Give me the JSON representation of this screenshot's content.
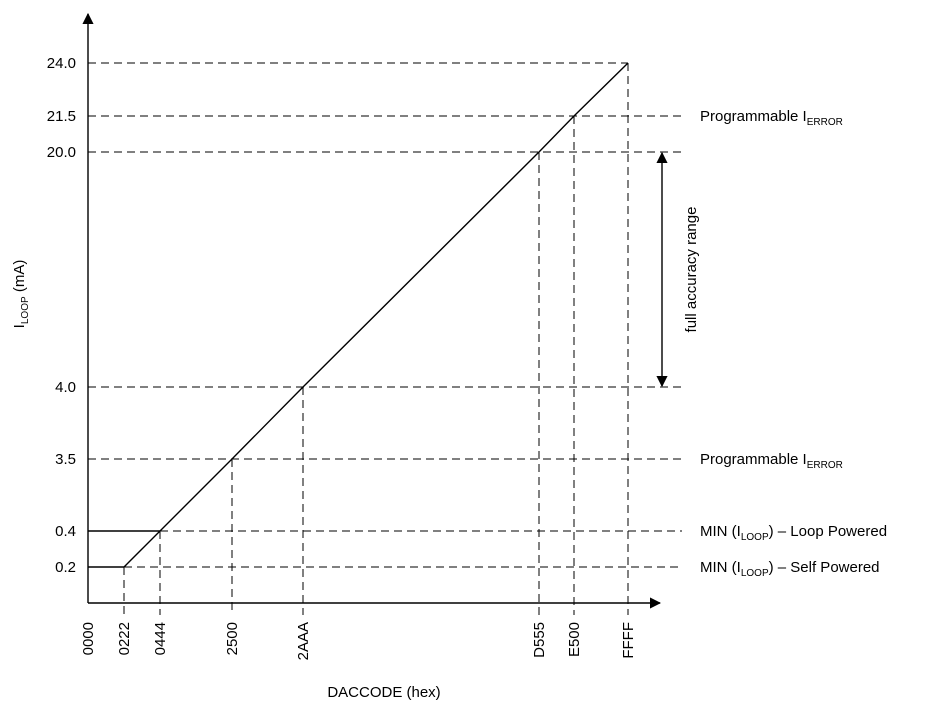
{
  "chart_data": {
    "type": "line",
    "xlabel": "DACCODE (hex)",
    "ylabel": {
      "main": "I",
      "sub": "LOOP",
      "rest": " (mA)"
    },
    "x_ticks": [
      "0000",
      "0222",
      "0444",
      "2500",
      "2AAA",
      "D555",
      "E500",
      "FFFF"
    ],
    "y_ticks": [
      "0.2",
      "0.4",
      "3.5",
      "4.0",
      "20.0",
      "21.5",
      "24.0"
    ],
    "series": [
      {
        "points": [
          {
            "x": "0000",
            "y": 0.2
          },
          {
            "x": "0222",
            "y": 0.2
          },
          {
            "x": "0444",
            "y": 0.4
          },
          {
            "x": "2500",
            "y": 3.5
          },
          {
            "x": "2AAA",
            "y": 4.0
          },
          {
            "x": "D555",
            "y": 20.0
          },
          {
            "x": "E500",
            "y": 21.5
          },
          {
            "x": "FFFF",
            "y": 24.0
          }
        ]
      }
    ],
    "loop_powered_segment": [
      {
        "x": "0000",
        "y": 0.4
      },
      {
        "x": "0444",
        "y": 0.4
      }
    ],
    "reference_lines": [
      {
        "y": 24.0,
        "x": "FFFF"
      },
      {
        "y": 21.5,
        "x": "E500",
        "label": {
          "main": "Programmable I",
          "sub": "ERROR",
          "rest": ""
        }
      },
      {
        "y": 20.0,
        "x": "D555",
        "bracket": true
      },
      {
        "y": 4.0,
        "x": "2AAA",
        "bracket": true
      },
      {
        "y": 3.5,
        "x": "2500",
        "label": {
          "main": "Programmable I",
          "sub": "ERROR",
          "rest": ""
        }
      },
      {
        "y": 0.4,
        "x": "0444",
        "label": {
          "main": "MIN (I",
          "sub": "LOOP",
          "rest": ") – Loop Powered"
        }
      },
      {
        "y": 0.2,
        "x": "0222",
        "label": {
          "main": "MIN (I",
          "sub": "LOOP",
          "rest": ") – Self Powered"
        }
      }
    ],
    "range_annotation": {
      "label": "full accuracy range",
      "from": 4.0,
      "to": 20.0
    }
  }
}
